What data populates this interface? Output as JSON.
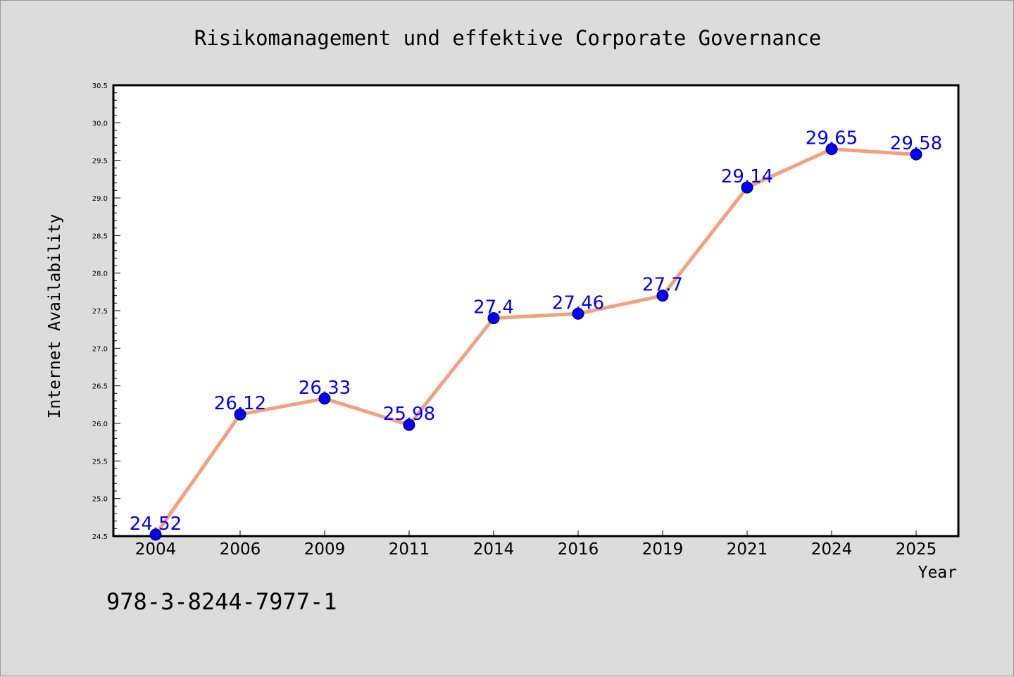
{
  "chart_data": {
    "type": "line",
    "title": "Risikomanagement und effektive Corporate Governance",
    "xlabel": "Year",
    "ylabel": "Internet Availability",
    "categories": [
      "2004",
      "2006",
      "2009",
      "2011",
      "2014",
      "2016",
      "2019",
      "2021",
      "2024",
      "2025"
    ],
    "series": [
      {
        "values": [
          24.52,
          26.12,
          26.33,
          25.98,
          27.4,
          27.46,
          27.7,
          29.14,
          29.65,
          29.58
        ],
        "labels": [
          "24.52",
          "26.12",
          "26.33",
          "25.98",
          "27.4",
          "27.46",
          "27.7",
          "29.14",
          "29.65",
          "29.58"
        ]
      }
    ],
    "ylim": [
      24.5,
      30.5
    ],
    "yticks": [
      "24.5",
      "25.0",
      "25.5",
      "26.0",
      "26.5",
      "27.0",
      "27.5",
      "28.0",
      "28.5",
      "29.0",
      "29.5",
      "30.0",
      "30.5"
    ],
    "line_color": "#f4a07f",
    "marker_color": "#0000ff",
    "label_color": "#0000ff",
    "grid": false
  },
  "annotation": "978-3-8244-7977-1"
}
